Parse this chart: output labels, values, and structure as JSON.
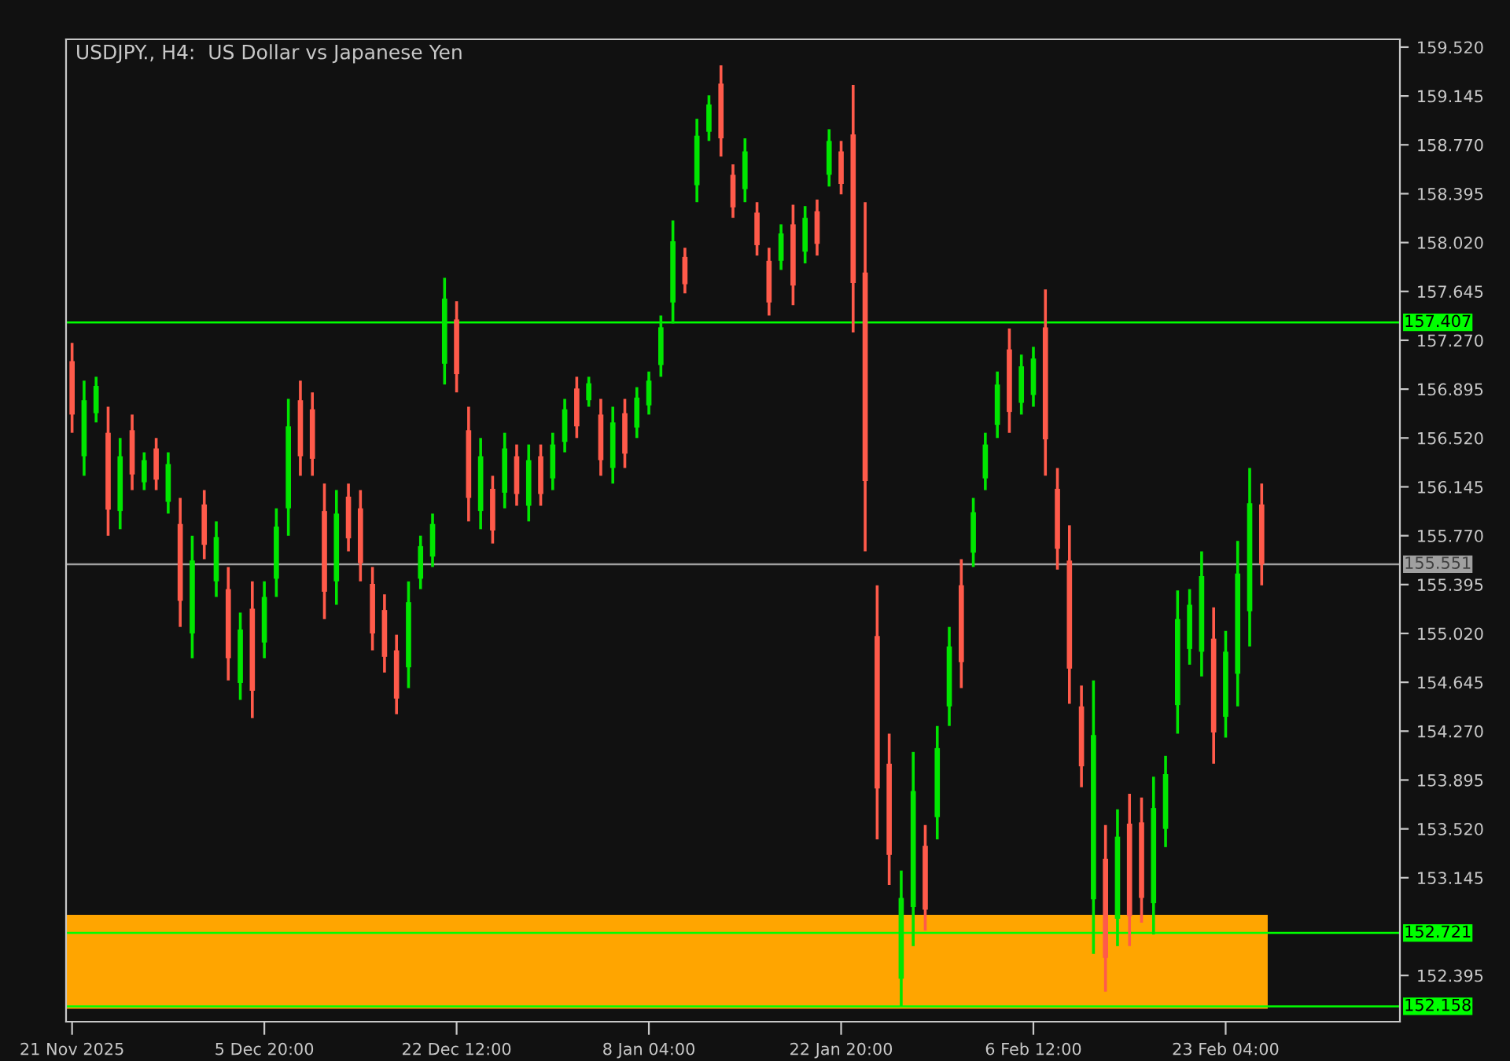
{
  "chart_data": {
    "type": "candlestick",
    "title": "USDJPY., H4:  US Dollar vs Japanese Yen",
    "categories": [
      "21 Nov 2025",
      null,
      null,
      null,
      null,
      null,
      null,
      null,
      null,
      null,
      null,
      null,
      null,
      null,
      null,
      null,
      "5 Dec 20:00",
      null,
      null,
      null,
      null,
      null,
      null,
      null,
      null,
      null,
      null,
      null,
      null,
      null,
      null,
      null,
      "22 Dec 12:00",
      null,
      null,
      null,
      null,
      null,
      null,
      null,
      null,
      null,
      null,
      null,
      null,
      null,
      null,
      null,
      "8 Jan 04:00",
      null,
      null,
      null,
      null,
      null,
      null,
      null,
      null,
      null,
      null,
      null,
      null,
      null,
      null,
      null,
      "22 Jan 20:00",
      null,
      null,
      null,
      null,
      null,
      null,
      null,
      null,
      null,
      null,
      null,
      null,
      null,
      null,
      null,
      "6 Feb 12:00",
      null,
      null,
      null,
      null,
      null,
      null,
      null,
      null,
      null,
      null,
      null,
      null,
      null,
      null,
      null,
      "23 Feb 04:00",
      null,
      null,
      null,
      null,
      null,
      null,
      null,
      null,
      null,
      null,
      null,
      null,
      null,
      null
    ],
    "ohlc": [
      [
        157.11,
        157.25,
        156.56,
        156.7
      ],
      [
        156.38,
        156.96,
        156.23,
        156.81
      ],
      [
        156.71,
        156.99,
        156.64,
        156.92
      ],
      [
        156.56,
        156.76,
        155.77,
        155.97
      ],
      [
        155.96,
        156.52,
        155.82,
        156.38
      ],
      [
        156.58,
        156.7,
        156.12,
        156.24
      ],
      [
        156.18,
        156.41,
        156.12,
        156.35
      ],
      [
        156.44,
        156.52,
        156.12,
        156.2
      ],
      [
        156.03,
        156.41,
        155.94,
        156.32
      ],
      [
        155.86,
        156.06,
        155.07,
        155.27
      ],
      [
        155.02,
        155.77,
        154.83,
        155.58
      ],
      [
        156.01,
        156.12,
        155.59,
        155.7
      ],
      [
        155.42,
        155.88,
        155.3,
        155.76
      ],
      [
        155.36,
        155.53,
        154.66,
        154.83
      ],
      [
        154.64,
        155.18,
        154.51,
        155.05
      ],
      [
        155.21,
        155.42,
        154.37,
        154.58
      ],
      [
        154.95,
        155.42,
        154.83,
        155.3
      ],
      [
        155.44,
        155.98,
        155.3,
        155.84
      ],
      [
        155.98,
        156.82,
        155.77,
        156.61
      ],
      [
        156.81,
        156.96,
        156.23,
        156.38
      ],
      [
        156.74,
        156.87,
        156.23,
        156.36
      ],
      [
        155.96,
        156.17,
        155.13,
        155.34
      ],
      [
        155.42,
        156.12,
        155.24,
        155.94
      ],
      [
        156.07,
        156.17,
        155.65,
        155.75
      ],
      [
        155.98,
        156.12,
        155.42,
        155.56
      ],
      [
        155.4,
        155.53,
        154.89,
        155.02
      ],
      [
        155.2,
        155.32,
        154.72,
        154.84
      ],
      [
        154.89,
        155.01,
        154.4,
        154.52
      ],
      [
        154.76,
        155.42,
        154.6,
        155.26
      ],
      [
        155.44,
        155.77,
        155.36,
        155.69
      ],
      [
        155.61,
        155.94,
        155.53,
        155.86
      ],
      [
        157.09,
        157.75,
        156.93,
        157.59
      ],
      [
        157.43,
        157.57,
        156.87,
        157.01
      ],
      [
        156.58,
        156.76,
        155.88,
        156.06
      ],
      [
        155.96,
        156.52,
        155.82,
        156.38
      ],
      [
        156.13,
        156.23,
        155.71,
        155.81
      ],
      [
        156.1,
        156.56,
        155.98,
        156.44
      ],
      [
        156.38,
        156.47,
        156.0,
        156.09
      ],
      [
        156.0,
        156.47,
        155.88,
        156.35
      ],
      [
        156.38,
        156.47,
        156.0,
        156.09
      ],
      [
        156.21,
        156.56,
        156.12,
        156.47
      ],
      [
        156.49,
        156.82,
        156.41,
        156.74
      ],
      [
        156.9,
        156.99,
        156.52,
        156.61
      ],
      [
        156.81,
        156.99,
        156.76,
        156.94
      ],
      [
        156.7,
        156.82,
        156.23,
        156.35
      ],
      [
        156.29,
        156.76,
        156.17,
        156.64
      ],
      [
        156.71,
        156.82,
        156.29,
        156.4
      ],
      [
        156.6,
        156.91,
        156.52,
        156.83
      ],
      [
        156.77,
        157.03,
        156.7,
        156.96
      ],
      [
        157.08,
        157.46,
        156.99,
        157.37
      ],
      [
        157.56,
        158.19,
        157.4,
        158.03
      ],
      [
        157.91,
        157.98,
        157.63,
        157.7
      ],
      [
        158.46,
        158.97,
        158.33,
        158.84
      ],
      [
        158.87,
        159.15,
        158.8,
        159.08
      ],
      [
        159.24,
        159.38,
        158.68,
        158.82
      ],
      [
        158.54,
        158.62,
        158.21,
        158.29
      ],
      [
        158.43,
        158.82,
        158.33,
        158.72
      ],
      [
        158.25,
        158.33,
        157.92,
        158.0
      ],
      [
        157.88,
        157.98,
        157.46,
        157.56
      ],
      [
        157.88,
        158.16,
        157.81,
        158.09
      ],
      [
        158.16,
        158.31,
        157.54,
        157.69
      ],
      [
        157.95,
        158.3,
        157.86,
        158.21
      ],
      [
        158.26,
        158.35,
        157.92,
        158.01
      ],
      [
        158.54,
        158.89,
        158.45,
        158.8
      ],
      [
        158.72,
        158.8,
        158.39,
        158.47
      ],
      [
        158.85,
        159.23,
        157.33,
        157.71
      ],
      [
        157.79,
        158.33,
        155.65,
        156.19
      ],
      [
        155.0,
        155.39,
        153.44,
        153.83
      ],
      [
        154.02,
        154.25,
        153.09,
        153.32
      ],
      [
        152.37,
        153.2,
        152.16,
        152.99
      ],
      [
        152.92,
        154.11,
        152.62,
        153.81
      ],
      [
        153.39,
        153.55,
        152.74,
        152.9
      ],
      [
        153.61,
        154.31,
        153.44,
        154.14
      ],
      [
        154.46,
        155.07,
        154.31,
        154.92
      ],
      [
        155.39,
        155.59,
        154.6,
        154.8
      ],
      [
        155.64,
        156.06,
        155.53,
        155.95
      ],
      [
        156.21,
        156.56,
        156.12,
        156.47
      ],
      [
        156.62,
        157.03,
        156.52,
        156.93
      ],
      [
        157.2,
        157.36,
        156.56,
        156.72
      ],
      [
        156.79,
        157.16,
        156.7,
        157.07
      ],
      [
        156.85,
        157.22,
        156.76,
        157.13
      ],
      [
        157.37,
        157.66,
        156.23,
        156.51
      ],
      [
        156.13,
        156.29,
        155.51,
        155.67
      ],
      [
        155.58,
        155.85,
        154.48,
        154.75
      ],
      [
        154.46,
        154.62,
        153.84,
        154.0
      ],
      [
        152.98,
        154.66,
        152.56,
        154.24
      ],
      [
        153.29,
        153.55,
        152.27,
        152.53
      ],
      [
        152.83,
        153.67,
        152.62,
        153.46
      ],
      [
        153.56,
        153.79,
        152.62,
        152.85
      ],
      [
        153.57,
        153.76,
        152.8,
        152.99
      ],
      [
        152.95,
        153.92,
        152.71,
        153.68
      ],
      [
        153.52,
        154.08,
        153.38,
        153.94
      ],
      [
        154.47,
        155.35,
        154.25,
        155.13
      ],
      [
        154.9,
        155.36,
        154.78,
        155.24
      ],
      [
        154.88,
        155.65,
        154.69,
        155.46
      ],
      [
        154.98,
        155.22,
        154.02,
        154.26
      ],
      [
        154.38,
        155.04,
        154.22,
        154.88
      ],
      [
        154.71,
        155.73,
        154.46,
        155.48
      ],
      [
        155.19,
        156.29,
        154.92,
        156.02
      ],
      [
        156.01,
        156.17,
        155.39,
        155.55
      ],
      null,
      null,
      null,
      null,
      null,
      null,
      null,
      null,
      null,
      null,
      null
    ],
    "colors": [
      "#ff5a4a",
      "#00e600",
      "#00e600",
      "#ff5a4a",
      "#00e600",
      "#ff5a4a",
      "#00e600",
      "#ff5a4a",
      "#00e600",
      "#ff5a4a",
      "#00e600",
      "#ff5a4a",
      "#00e600",
      "#ff5a4a",
      "#00e600",
      "#ff5a4a",
      "#00e600",
      "#00e600",
      "#00e600",
      "#ff5a4a",
      "#ff5a4a",
      "#ff5a4a",
      "#00e600",
      "#ff5a4a",
      "#ff5a4a",
      "#ff5a4a",
      "#ff5a4a",
      "#ff5a4a",
      "#00e600",
      "#00e600",
      "#00e600",
      "#00e600",
      "#ff5a4a",
      "#ff5a4a",
      "#00e600",
      "#ff5a4a",
      "#00e600",
      "#ff5a4a",
      "#00e600",
      "#ff5a4a",
      "#00e600",
      "#00e600",
      "#ff5a4a",
      "#00e600",
      "#ff5a4a",
      "#00e600",
      "#ff5a4a",
      "#00e600",
      "#00e600",
      "#00e600",
      "#00e600",
      "#ff5a4a",
      "#00e600",
      "#00e600",
      "#ff5a4a",
      "#ff5a4a",
      "#00e600",
      "#ff5a4a",
      "#ff5a4a",
      "#00e600",
      "#ff5a4a",
      "#00e600",
      "#ff5a4a",
      "#00e600",
      "#ff5a4a",
      "#ff5a4a",
      "#ff5a4a",
      "#ff5a4a",
      "#ff5a4a",
      "#00e600",
      "#00e600",
      "#ff5a4a",
      "#00e600",
      "#00e600",
      "#ff5a4a",
      "#00e600",
      "#00e600",
      "#00e600",
      "#ff5a4a",
      "#00e600",
      "#00e600",
      "#ff5a4a",
      "#ff5a4a",
      "#ff5a4a",
      "#ff5a4a",
      "#00e600",
      "#ff5a4a",
      "#00e600",
      "#ff5a4a",
      "#ff5a4a",
      "#00e600",
      "#00e600",
      "#00e600",
      "#00e600",
      "#00e600",
      "#ff5a4a",
      "#00e600",
      "#00e600",
      "#00e600",
      "#ff5a4a",
      null,
      null,
      null,
      null,
      null,
      null,
      null,
      null,
      null,
      null,
      null
    ],
    "ylim": [
      152.04,
      159.58
    ],
    "yticks": [
      {
        "value": 159.52,
        "label": "159.520"
      },
      {
        "value": 159.145,
        "label": "159.145"
      },
      {
        "value": 158.77,
        "label": "158.770"
      },
      {
        "value": 158.395,
        "label": "158.395"
      },
      {
        "value": 158.02,
        "label": "158.020"
      },
      {
        "value": 157.645,
        "label": "157.645"
      },
      {
        "value": 157.27,
        "label": "157.270"
      },
      {
        "value": 156.895,
        "label": "156.895"
      },
      {
        "value": 156.52,
        "label": "156.520"
      },
      {
        "value": 156.145,
        "label": "156.145"
      },
      {
        "value": 155.77,
        "label": "155.770"
      },
      {
        "value": 155.395,
        "label": "155.395"
      },
      {
        "value": 155.02,
        "label": "155.020"
      },
      {
        "value": 154.645,
        "label": "154.645"
      },
      {
        "value": 154.27,
        "label": "154.270"
      },
      {
        "value": 153.895,
        "label": "153.895"
      },
      {
        "value": 153.52,
        "label": "153.520"
      },
      {
        "value": 153.145,
        "label": "153.145"
      },
      {
        "value": 152.395,
        "label": "152.395"
      }
    ],
    "ref_lines": [
      {
        "axis": "y",
        "value": 157.407,
        "label": "157.407",
        "color": "#00ff00"
      },
      {
        "axis": "y",
        "value": 155.551,
        "label": "155.551",
        "color": "#a0a0a0"
      },
      {
        "axis": "y",
        "value": 152.721,
        "label": "152.721",
        "color": "#00ff00"
      },
      {
        "axis": "y",
        "value": 152.158,
        "label": "152.158",
        "color": "#00ff00"
      }
    ],
    "bands": [
      {
        "axis": "y",
        "from": 152.14,
        "to": 152.86,
        "color": "#ffa500"
      }
    ],
    "grid": false,
    "legend": false
  }
}
